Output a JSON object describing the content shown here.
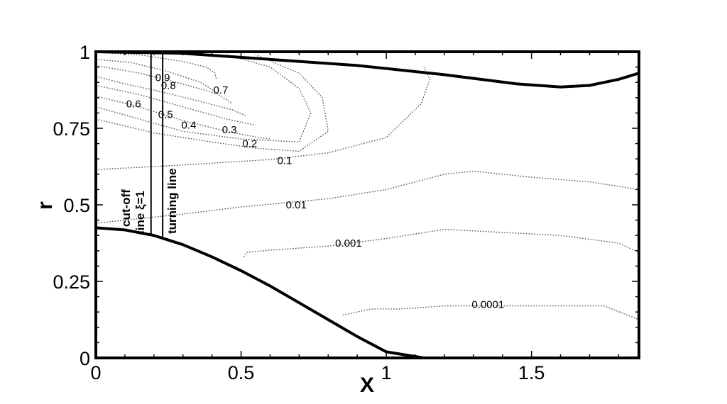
{
  "chart_data": {
    "type": "contour",
    "xlabel": "X",
    "ylabel": "r",
    "xlim": [
      0,
      1.87
    ],
    "ylim": [
      0,
      1
    ],
    "x_ticks": [
      {
        "value": 0,
        "label": "0"
      },
      {
        "value": 0.5,
        "label": "0.5"
      },
      {
        "value": 1,
        "label": "1"
      },
      {
        "value": 1.5,
        "label": "1.5"
      }
    ],
    "y_ticks": [
      {
        "value": 0,
        "label": "0"
      },
      {
        "value": 0.25,
        "label": "0.25"
      },
      {
        "value": 0.5,
        "label": "0.5"
      },
      {
        "value": 0.75,
        "label": "0.75"
      },
      {
        "value": 1,
        "label": "1"
      }
    ],
    "x_minor_step": 0.1,
    "y_minor_step": 0.05,
    "outer_wall": [
      [
        0,
        1
      ],
      [
        0.3,
        0.995
      ],
      [
        0.6,
        0.975
      ],
      [
        0.9,
        0.955
      ],
      [
        1.2,
        0.925
      ],
      [
        1.45,
        0.895
      ],
      [
        1.6,
        0.885
      ],
      [
        1.7,
        0.89
      ],
      [
        1.8,
        0.91
      ],
      [
        1.87,
        0.93
      ]
    ],
    "inner_body": [
      [
        0,
        0.425
      ],
      [
        0.1,
        0.418
      ],
      [
        0.2,
        0.4
      ],
      [
        0.3,
        0.37
      ],
      [
        0.4,
        0.33
      ],
      [
        0.5,
        0.285
      ],
      [
        0.6,
        0.235
      ],
      [
        0.7,
        0.18
      ],
      [
        0.8,
        0.125
      ],
      [
        0.9,
        0.07
      ],
      [
        1.0,
        0.02
      ],
      [
        1.13,
        -0.01
      ]
    ],
    "vertical_lines": [
      {
        "name": "cut-off line",
        "x": 0.19,
        "y_from": 0.401,
        "y_to": 1.0
      },
      {
        "name": "turning line",
        "x": 0.23,
        "y_from": 0.388,
        "y_to": 1.0
      }
    ],
    "annotations": {
      "cutoff_line1": "cut-off",
      "cutoff_line2": "line ξ=1",
      "turning": "turning line"
    },
    "contours": [
      {
        "level": "0.9",
        "points": [
          [
            0,
            0.998
          ],
          [
            0.15,
            0.99
          ],
          [
            0.3,
            0.968
          ],
          [
            0.38,
            0.95
          ],
          [
            0.41,
            0.93
          ],
          [
            0.415,
            0.91
          ]
        ],
        "label_at": [
          0.23,
          0.915
        ]
      },
      {
        "level": "0.8",
        "points": [
          [
            0,
            0.975
          ],
          [
            0.12,
            0.965
          ],
          [
            0.25,
            0.935
          ],
          [
            0.36,
            0.9
          ],
          [
            0.42,
            0.865
          ]
        ],
        "label_at": [
          0.25,
          0.89
        ]
      },
      {
        "level": "0.7",
        "points": [
          [
            0,
            0.955
          ],
          [
            0.15,
            0.93
          ],
          [
            0.3,
            0.895
          ],
          [
            0.42,
            0.862
          ],
          [
            0.47,
            0.83
          ]
        ],
        "label_at": [
          0.43,
          0.875
        ]
      },
      {
        "level": "0.6",
        "points": [
          [
            0,
            0.92
          ],
          [
            0.1,
            0.895
          ],
          [
            0.2,
            0.875
          ],
          [
            0.35,
            0.84
          ],
          [
            0.47,
            0.81
          ],
          [
            0.52,
            0.79
          ]
        ],
        "label_at": [
          0.13,
          0.83
        ]
      },
      {
        "level": "0.5",
        "points": [
          [
            0,
            0.89
          ],
          [
            0.15,
            0.86
          ],
          [
            0.3,
            0.82
          ],
          [
            0.45,
            0.78
          ],
          [
            0.55,
            0.76
          ]
        ],
        "label_at": [
          0.24,
          0.795
        ]
      },
      {
        "level": "0.4",
        "points": [
          [
            0,
            0.855
          ],
          [
            0.15,
            0.82
          ],
          [
            0.3,
            0.775
          ],
          [
            0.45,
            0.74
          ],
          [
            0.56,
            0.72
          ],
          [
            0.6,
            0.715
          ]
        ],
        "label_at": [
          0.32,
          0.76
        ]
      },
      {
        "level": "0.3",
        "points": [
          [
            0,
            0.82
          ],
          [
            0.15,
            0.78
          ],
          [
            0.3,
            0.74
          ],
          [
            0.5,
            0.715
          ],
          [
            0.7,
            0.705
          ],
          [
            0.74,
            0.8
          ],
          [
            0.7,
            0.88
          ],
          [
            0.6,
            0.95
          ],
          [
            0.45,
            0.99
          ]
        ],
        "label_at": [
          0.46,
          0.745
        ]
      },
      {
        "level": "0.2",
        "points": [
          [
            0,
            0.78
          ],
          [
            0.2,
            0.735
          ],
          [
            0.4,
            0.705
          ],
          [
            0.55,
            0.685
          ],
          [
            0.7,
            0.675
          ],
          [
            0.8,
            0.74
          ],
          [
            0.78,
            0.85
          ],
          [
            0.7,
            0.93
          ],
          [
            0.55,
            0.99
          ]
        ],
        "label_at": [
          0.53,
          0.7
        ]
      },
      {
        "level": "0.1",
        "points": [
          [
            0,
            0.615
          ],
          [
            0.3,
            0.63
          ],
          [
            0.6,
            0.648
          ],
          [
            0.8,
            0.67
          ],
          [
            1.0,
            0.72
          ],
          [
            1.12,
            0.83
          ],
          [
            1.15,
            0.91
          ],
          [
            1.13,
            0.95
          ]
        ],
        "label_at": [
          0.65,
          0.645
        ]
      },
      {
        "level": "0.01",
        "points": [
          [
            0,
            0.44
          ],
          [
            0.3,
            0.47
          ],
          [
            0.5,
            0.493
          ],
          [
            0.8,
            0.52
          ],
          [
            1.0,
            0.55
          ],
          [
            1.2,
            0.6
          ],
          [
            1.3,
            0.61
          ],
          [
            1.5,
            0.59
          ],
          [
            1.7,
            0.575
          ],
          [
            1.87,
            0.55
          ]
        ],
        "label_at": [
          0.69,
          0.5
        ]
      },
      {
        "level": "0.001",
        "points": [
          [
            0.51,
            0.33
          ],
          [
            0.52,
            0.345
          ],
          [
            0.6,
            0.352
          ],
          [
            0.8,
            0.365
          ],
          [
            1.0,
            0.39
          ],
          [
            1.2,
            0.42
          ],
          [
            1.4,
            0.41
          ],
          [
            1.6,
            0.4
          ],
          [
            1.8,
            0.375
          ],
          [
            1.87,
            0.345
          ]
        ],
        "label_at": [
          0.87,
          0.375
        ]
      },
      {
        "level": "0.0001",
        "points": [
          [
            0.85,
            0.14
          ],
          [
            0.95,
            0.16
          ],
          [
            1.05,
            0.16
          ],
          [
            1.2,
            0.17
          ],
          [
            1.4,
            0.17
          ],
          [
            1.6,
            0.17
          ],
          [
            1.75,
            0.17
          ],
          [
            1.87,
            0.125
          ]
        ],
        "label_at": [
          1.35,
          0.175
        ]
      }
    ]
  }
}
